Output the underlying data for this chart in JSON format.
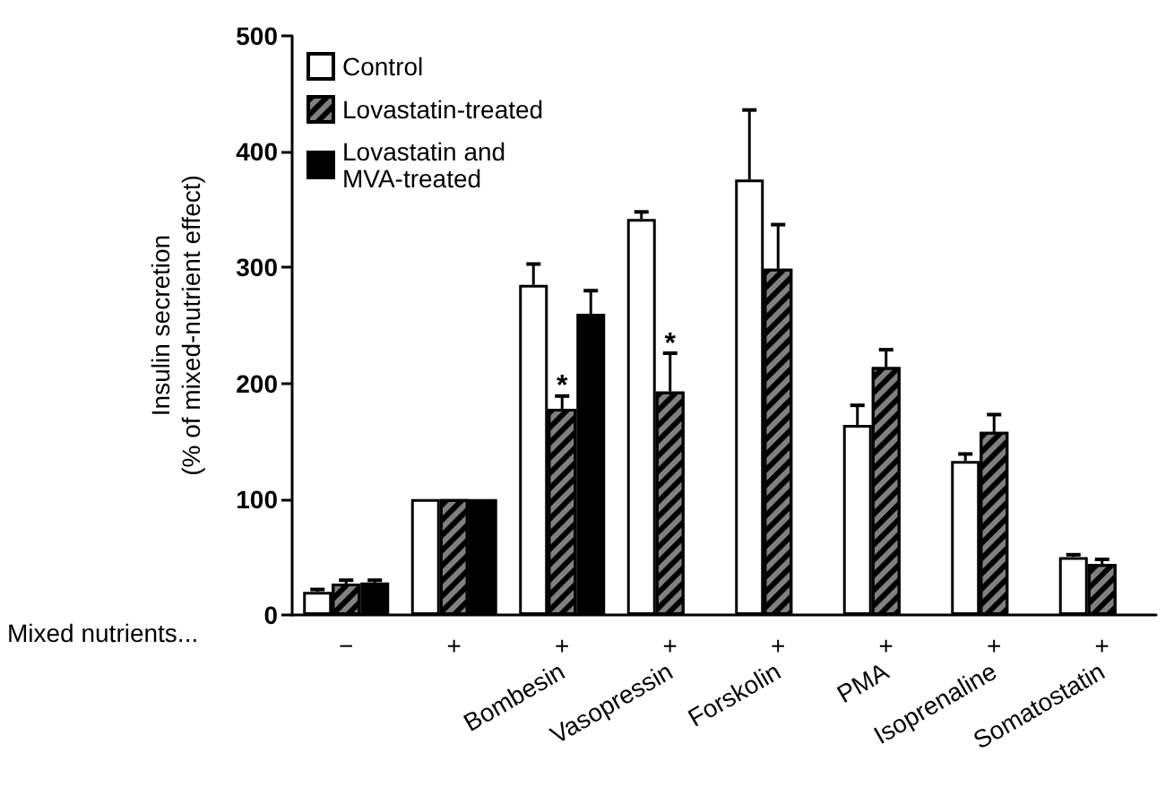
{
  "chart_data": {
    "type": "bar",
    "ylabel": "Insulin secretion\n(% of mixed-nutrient effect)",
    "categories": [
      null,
      null,
      "Bombesin",
      "Vasopressin",
      "Forskolin",
      "PMA",
      "Isoprenaline",
      "Somatostatin"
    ],
    "series": [
      {
        "name": "Control",
        "color": "#ffffff",
        "values": [
          20,
          100,
          285,
          342,
          376,
          164,
          133,
          50
        ],
        "errors": [
          2,
          null,
          18,
          6,
          60,
          17,
          6,
          2
        ]
      },
      {
        "name": "Lovastatin-treated",
        "color": "#808080",
        "values": [
          27,
          100,
          178,
          193,
          299,
          214,
          158,
          44
        ],
        "errors": [
          3,
          null,
          11,
          33,
          38,
          15,
          15,
          4
        ]
      },
      {
        "name": "Lovastatin and\nMVA-treated",
        "color": "#000000",
        "values": [
          28,
          100,
          260,
          null,
          null,
          null,
          null,
          null
        ],
        "errors": [
          2,
          null,
          20,
          null,
          null,
          null,
          null,
          null
        ]
      }
    ],
    "ylim": [
      0,
      500
    ],
    "yticks": [
      0,
      100,
      200,
      300,
      400,
      500
    ],
    "legend": "top left",
    "grid": false,
    "annotations": [
      "Mixed nutrients...",
      "−",
      "+",
      "+",
      "+",
      "+",
      "+",
      "+",
      "+",
      {
        "text": "*",
        "x": "Bombesin",
        "y": 197
      },
      {
        "text": "*",
        "x": "Vasopressin",
        "y": 234
      }
    ]
  }
}
